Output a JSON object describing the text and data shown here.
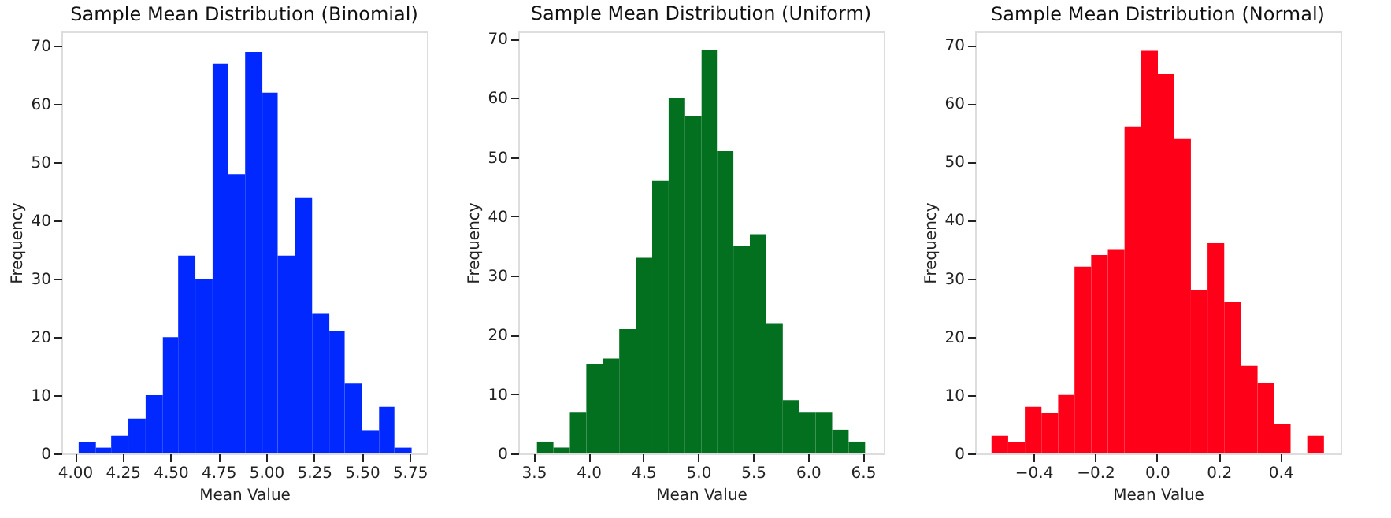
{
  "chart_data": [
    {
      "type": "histogram",
      "title": "Sample Mean Distribution (Binomial)",
      "xlabel": "Mean Value",
      "ylabel": "Frequency",
      "color": "#0028ff",
      "grid": false,
      "bins": [
        4.02,
        4.11,
        4.19,
        4.28,
        4.37,
        4.46,
        4.54,
        4.63,
        4.72,
        4.8,
        4.89,
        4.98,
        5.06,
        5.15,
        5.24,
        5.33,
        5.41,
        5.5,
        5.59,
        5.67,
        5.76
      ],
      "values": [
        2,
        1,
        3,
        6,
        10,
        20,
        34,
        30,
        67,
        48,
        69,
        62,
        34,
        44,
        24,
        21,
        12,
        4,
        8,
        1
      ],
      "xlim": [
        3.93,
        5.84
      ],
      "ylim": [
        0,
        72.5
      ],
      "xticks": [
        {
          "value": 4,
          "label": "4.00"
        },
        {
          "value": 4.25,
          "label": "4.25"
        },
        {
          "value": 4.5,
          "label": "4.50"
        },
        {
          "value": 4.75,
          "label": "4.75"
        },
        {
          "value": 5,
          "label": "5.00"
        },
        {
          "value": 5.25,
          "label": "5.25"
        },
        {
          "value": 5.5,
          "label": "5.50"
        },
        {
          "value": 5.75,
          "label": "5.75"
        }
      ],
      "yticks": [
        0,
        10,
        20,
        30,
        40,
        50,
        60,
        70
      ]
    },
    {
      "type": "histogram",
      "title": "Sample Mean Distribution (Uniform)",
      "xlabel": "Mean Value",
      "ylabel": "Frequency",
      "color": "#037020",
      "grid": false,
      "bins": [
        3.53,
        3.68,
        3.83,
        3.98,
        4.13,
        4.28,
        4.43,
        4.58,
        4.73,
        4.88,
        5.03,
        5.17,
        5.32,
        5.47,
        5.62,
        5.77,
        5.92,
        6.07,
        6.22,
        6.37,
        6.52
      ],
      "values": [
        2,
        1,
        7,
        15,
        16,
        21,
        33,
        46,
        60,
        57,
        68,
        51,
        35,
        37,
        22,
        9,
        7,
        7,
        4,
        2
      ],
      "xlim": [
        3.36,
        6.69
      ],
      "ylim": [
        0,
        71.2
      ],
      "xticks": [
        {
          "value": 3.5,
          "label": "3.5"
        },
        {
          "value": 4,
          "label": "4.0"
        },
        {
          "value": 4.5,
          "label": "4.5"
        },
        {
          "value": 5,
          "label": "5.0"
        },
        {
          "value": 5.5,
          "label": "5.5"
        },
        {
          "value": 6,
          "label": "6.0"
        },
        {
          "value": 6.5,
          "label": "6.5"
        }
      ],
      "yticks": [
        0,
        10,
        20,
        30,
        40,
        50,
        60,
        70
      ]
    },
    {
      "type": "histogram",
      "title": "Sample Mean Distribution (Normal)",
      "xlabel": "Mean Value",
      "ylabel": "Frequency",
      "color": "#ff0019",
      "grid": false,
      "bins": [
        -0.536,
        -0.482,
        -0.428,
        -0.374,
        -0.32,
        -0.267,
        -0.213,
        -0.159,
        -0.105,
        -0.051,
        0.003,
        0.056,
        0.11,
        0.164,
        0.218,
        0.272,
        0.326,
        0.379,
        0.433,
        0.487,
        0.541
      ],
      "values": [
        3,
        2,
        8,
        7,
        10,
        32,
        34,
        35,
        56,
        69,
        65,
        54,
        28,
        36,
        26,
        15,
        12,
        5,
        0,
        3
      ],
      "xlim": [
        -0.589,
        0.595
      ],
      "ylim": [
        0,
        72.3
      ],
      "xticks": [
        {
          "value": -0.4,
          "label": "−0.4"
        },
        {
          "value": -0.2,
          "label": "−0.2"
        },
        {
          "value": 0,
          "label": "0.0"
        },
        {
          "value": 0.2,
          "label": "0.2"
        },
        {
          "value": 0.4,
          "label": "0.4"
        }
      ],
      "yticks": [
        0,
        10,
        20,
        30,
        40,
        50,
        60,
        70
      ]
    }
  ]
}
